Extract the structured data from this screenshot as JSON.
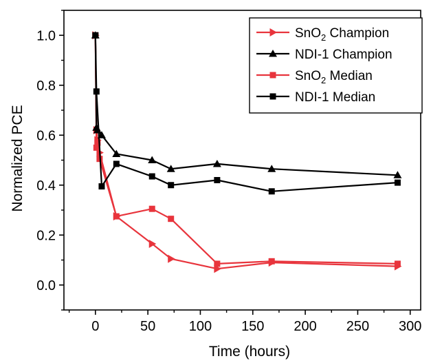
{
  "chart_data": {
    "type": "line",
    "title": "",
    "xlabel": "Time (hours)",
    "ylabel": "Normalized PCE",
    "xlim": [
      -30,
      310
    ],
    "ylim": [
      -0.1,
      1.1
    ],
    "xticks": [
      0,
      50,
      100,
      150,
      200,
      250,
      300
    ],
    "yticks": [
      0.0,
      0.2,
      0.4,
      0.6,
      0.8,
      1.0
    ],
    "xtick_labels": [
      "0",
      "50",
      "100",
      "150",
      "200",
      "250",
      "300"
    ],
    "ytick_labels": [
      "0.0",
      "0.2",
      "0.4",
      "0.6",
      "0.8",
      "1.0"
    ],
    "grid": false,
    "legend_position": "top-right",
    "series": [
      {
        "name": "SnO2 Champion",
        "legend_base": "SnO",
        "legend_sub": "2",
        "legend_tail": " Champion",
        "color": "#e8343c",
        "marker": "triangle-right",
        "x": [
          0,
          1,
          2,
          4,
          20,
          54,
          72,
          116,
          168,
          288
        ],
        "y": [
          1.0,
          0.62,
          0.58,
          0.53,
          0.275,
          0.165,
          0.105,
          0.065,
          0.09,
          0.075
        ]
      },
      {
        "name": "NDI-1 Champion",
        "legend_base": "NDI-1",
        "legend_sub": "",
        "legend_tail": " Champion",
        "color": "#000000",
        "marker": "triangle-up",
        "x": [
          0,
          1,
          2,
          6,
          20,
          54,
          72,
          116,
          168,
          288
        ],
        "y": [
          1.0,
          0.63,
          0.62,
          0.6,
          0.525,
          0.5,
          0.465,
          0.485,
          0.465,
          0.44
        ]
      },
      {
        "name": "SnO2 Median",
        "legend_base": "SnO",
        "legend_sub": "2",
        "legend_tail": " Median",
        "color": "#e8343c",
        "marker": "square",
        "x": [
          0,
          1,
          2,
          4,
          20,
          54,
          72,
          116,
          168,
          288
        ],
        "y": [
          1.0,
          0.55,
          0.57,
          0.505,
          0.275,
          0.305,
          0.265,
          0.085,
          0.095,
          0.085
        ]
      },
      {
        "name": "NDI-1 Median",
        "legend_base": "NDI-1",
        "legend_sub": "",
        "legend_tail": " Median",
        "color": "#000000",
        "marker": "square",
        "x": [
          0,
          1,
          6,
          20,
          54,
          72,
          116,
          168,
          288
        ],
        "y": [
          1.0,
          0.775,
          0.395,
          0.485,
          0.435,
          0.4,
          0.42,
          0.375,
          0.41
        ]
      }
    ]
  }
}
